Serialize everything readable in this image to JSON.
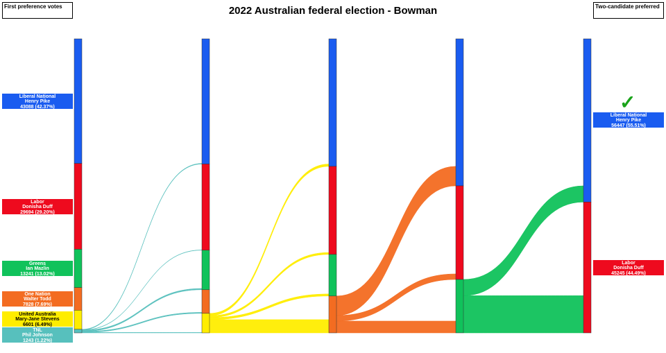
{
  "title": "2022 Australian federal election - Bowman",
  "left_header": "First preference votes",
  "right_header": "Two-candidate preferred",
  "candidates": [
    {
      "party": "Liberal National",
      "name": "Henry Pike",
      "votes_label": "43088 (42.37%)",
      "color": "#1a5cf0"
    },
    {
      "party": "Labor",
      "name": "Donisha Duff",
      "votes_label": "29694 (29.20%)",
      "color": "#ee0a1e"
    },
    {
      "party": "Greens",
      "name": "Ian Mazlin",
      "votes_label": "13241 (13.02%)",
      "color": "#10c25b"
    },
    {
      "party": "One Nation",
      "name": "Walter Todd",
      "votes_label": "7828 (7.69%)",
      "color": "#f36c21"
    },
    {
      "party": "United Australia",
      "name": "Mary-Jane Stevens",
      "votes_label": "6601 (6.49%)",
      "color": "#ffed00"
    },
    {
      "party": "TNL",
      "name": "Phil Johnson",
      "votes_label": "1243 (1.22%)",
      "color": "#57c0bd"
    }
  ],
  "final": [
    {
      "party": "Liberal National",
      "name": "Henry Pike",
      "votes_label": "56447 (55.51%)",
      "color": "#1a5cf0",
      "winner": true,
      "icon": "check-icon"
    },
    {
      "party": "Labor",
      "name": "Donisha Duff",
      "votes_label": "45245 (44.49%)",
      "color": "#ee0a1e"
    }
  ],
  "rounds": [
    [
      43088,
      29694,
      13241,
      7828,
      6601,
      1243
    ],
    [
      43300,
      29790,
      13680,
      8170,
      6750,
      0
    ],
    [
      44100,
      30450,
      14390,
      12750,
      0,
      0
    ],
    [
      50840,
      32370,
      18480,
      0,
      0,
      0
    ],
    [
      56447,
      45245,
      0,
      0,
      0,
      0
    ]
  ]
}
